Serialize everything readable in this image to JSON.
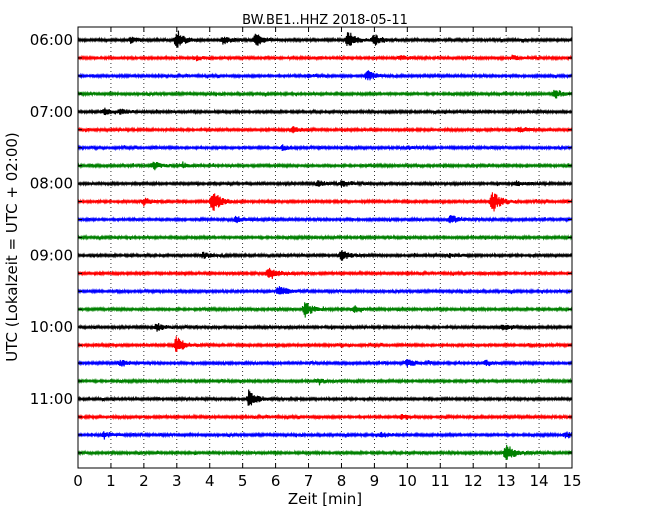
{
  "chart_data": {
    "type": "line",
    "title": "BW.BE1..HHZ 2018-05-11",
    "xlabel": "Zeit  [min]",
    "ylabel": "UTC (Lokalzeit = UTC + 02:00)",
    "xlim": [
      0,
      15
    ],
    "x_ticks": [
      "0",
      "1",
      "2",
      "3",
      "4",
      "5",
      "6",
      "7",
      "8",
      "9",
      "10",
      "11",
      "12",
      "13",
      "14",
      "15"
    ],
    "y_tick_labels": [
      "06:00",
      "07:00",
      "08:00",
      "09:00",
      "10:00",
      "11:00"
    ],
    "trace_colors": [
      "#000000",
      "#ff0000",
      "#0000ff",
      "#008000"
    ],
    "traces_per_hour": 4,
    "minutes_per_trace": 15,
    "grid": true,
    "series": [
      {
        "start": "05:45",
        "events": [
          [
            1.6,
            0.25
          ],
          [
            3.0,
            0.75
          ],
          [
            4.4,
            0.35
          ],
          [
            5.4,
            0.6
          ],
          [
            8.2,
            0.8
          ],
          [
            9.0,
            0.5
          ]
        ]
      },
      {
        "start": "06:00",
        "events": [
          [
            3.6,
            0.2
          ],
          [
            9.8,
            0.2
          ],
          [
            13.2,
            0.2
          ]
        ]
      },
      {
        "start": "06:15",
        "events": [
          [
            8.8,
            0.45
          ],
          [
            7.0,
            0.15
          ]
        ]
      },
      {
        "start": "06:30",
        "events": [
          [
            14.5,
            0.35
          ]
        ]
      },
      {
        "start": "06:45",
        "events": [
          [
            0.8,
            0.3
          ],
          [
            1.3,
            0.25
          ]
        ]
      },
      {
        "start": "07:00",
        "events": [
          [
            6.5,
            0.3
          ],
          [
            13.4,
            0.25
          ]
        ]
      },
      {
        "start": "07:15",
        "events": [
          [
            6.2,
            0.2
          ],
          [
            10.0,
            0.15
          ]
        ]
      },
      {
        "start": "07:30",
        "events": [
          [
            2.3,
            0.35
          ],
          [
            3.2,
            0.15
          ]
        ]
      },
      {
        "start": "07:45",
        "events": [
          [
            7.3,
            0.25
          ],
          [
            8.0,
            0.3
          ],
          [
            13.3,
            0.2
          ]
        ]
      },
      {
        "start": "08:00",
        "events": [
          [
            2.0,
            0.35
          ],
          [
            4.1,
            1.0
          ],
          [
            12.6,
            0.95
          ]
        ]
      },
      {
        "start": "08:15",
        "events": [
          [
            4.8,
            0.25
          ],
          [
            11.3,
            0.45
          ]
        ]
      },
      {
        "start": "08:30",
        "events": []
      },
      {
        "start": "08:45",
        "events": [
          [
            3.8,
            0.25
          ],
          [
            8.0,
            0.45
          ],
          [
            11.3,
            0.15
          ]
        ]
      },
      {
        "start": "09:00",
        "events": [
          [
            5.8,
            0.65
          ]
        ]
      },
      {
        "start": "09:15",
        "events": [
          [
            6.1,
            0.55
          ]
        ]
      },
      {
        "start": "09:30",
        "events": [
          [
            6.9,
            0.65
          ],
          [
            8.4,
            0.3
          ]
        ]
      },
      {
        "start": "09:45",
        "events": [
          [
            2.4,
            0.35
          ],
          [
            12.9,
            0.3
          ]
        ]
      },
      {
        "start": "10:00",
        "events": [
          [
            3.0,
            0.8
          ]
        ]
      },
      {
        "start": "10:15",
        "events": [
          [
            1.3,
            0.3
          ],
          [
            10.0,
            0.35
          ],
          [
            12.4,
            0.25
          ]
        ]
      },
      {
        "start": "10:30",
        "events": [
          [
            7.3,
            0.2
          ]
        ]
      },
      {
        "start": "10:45",
        "events": [
          [
            5.2,
            0.75
          ]
        ]
      },
      {
        "start": "11:00",
        "events": [
          [
            9.8,
            0.25
          ]
        ]
      },
      {
        "start": "11:15",
        "events": [
          [
            0.8,
            0.3
          ],
          [
            9.2,
            0.25
          ],
          [
            14.8,
            0.3
          ]
        ]
      },
      {
        "start": "11:30",
        "events": [
          [
            13.0,
            0.8
          ]
        ]
      }
    ]
  }
}
